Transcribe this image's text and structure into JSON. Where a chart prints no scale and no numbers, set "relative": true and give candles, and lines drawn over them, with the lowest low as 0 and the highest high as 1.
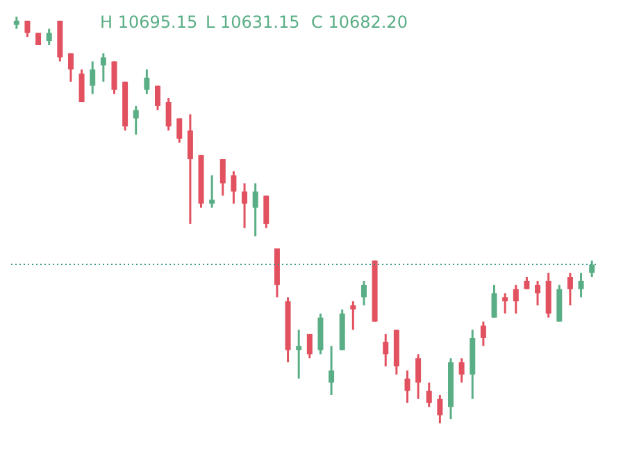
{
  "chart_data": {
    "type": "candlestick",
    "relative": true,
    "annotations": [
      "H 10695.15",
      "L 10631.15",
      "C 10682.20"
    ],
    "categories": [
      null,
      null,
      null,
      null,
      null,
      null,
      null,
      null,
      null,
      null,
      null,
      null,
      null,
      null,
      null,
      null,
      null,
      null,
      null,
      null,
      null,
      null,
      null,
      null,
      null,
      null,
      null,
      null,
      null,
      null,
      null,
      null,
      null,
      null,
      null,
      null,
      null,
      null,
      null,
      null,
      null,
      null,
      null,
      null,
      null,
      null,
      null,
      null,
      null,
      null,
      null,
      null,
      null,
      null
    ],
    "colors": [
      "#5aae85",
      "#e2515f",
      "#e2515f",
      "#5aae85",
      "#e2515f",
      "#e2515f",
      "#e2515f",
      "#5aae85",
      "#5aae85",
      "#e2515f",
      "#e2515f",
      "#5aae85",
      "#5aae85",
      "#e2515f",
      "#e2515f",
      "#e2515f",
      "#e2515f",
      "#e2515f",
      "#5aae85",
      "#e2515f",
      "#e2515f",
      "#e2515f",
      "#5aae85",
      "#e2515f",
      "#e2515f",
      "#e2515f",
      "#5aae85",
      "#e2515f",
      "#5aae85",
      "#5aae85",
      "#5aae85",
      "#e2515f",
      "#5aae85",
      "#e2515f",
      "#e2515f",
      "#e2515f",
      "#e2515f",
      "#e2515f",
      "#e2515f",
      "#e2515f",
      "#5aae85",
      "#e2515f",
      "#5aae85",
      "#e2515f",
      "#5aae85",
      "#e2515f",
      "#e2515f",
      "#e2515f",
      "#e2515f",
      "#e2515f",
      "#5aae85",
      "#e2515f",
      "#5aae85",
      "#5aae85"
    ],
    "ohlc": [
      [
        0.98,
        1.0,
        0.97,
        0.99
      ],
      [
        0.99,
        0.99,
        0.95,
        0.96
      ],
      [
        0.96,
        0.96,
        0.93,
        0.93
      ],
      [
        0.94,
        0.97,
        0.93,
        0.96
      ],
      [
        0.99,
        0.99,
        0.89,
        0.9
      ],
      [
        0.91,
        0.91,
        0.84,
        0.87
      ],
      [
        0.86,
        0.87,
        0.79,
        0.79
      ],
      [
        0.83,
        0.89,
        0.81,
        0.87
      ],
      [
        0.88,
        0.91,
        0.84,
        0.9
      ],
      [
        0.89,
        0.89,
        0.81,
        0.82
      ],
      [
        0.84,
        0.84,
        0.72,
        0.73
      ],
      [
        0.75,
        0.78,
        0.71,
        0.77
      ],
      [
        0.82,
        0.87,
        0.81,
        0.85
      ],
      [
        0.83,
        0.83,
        0.77,
        0.78
      ],
      [
        0.79,
        0.8,
        0.72,
        0.73
      ],
      [
        0.75,
        0.75,
        0.69,
        0.7
      ],
      [
        0.72,
        0.76,
        0.49,
        0.65
      ],
      [
        0.66,
        0.66,
        0.53,
        0.54
      ],
      [
        0.54,
        0.61,
        0.53,
        0.55
      ],
      [
        0.65,
        0.65,
        0.56,
        0.59
      ],
      [
        0.61,
        0.62,
        0.54,
        0.57
      ],
      [
        0.57,
        0.59,
        0.48,
        0.54
      ],
      [
        0.53,
        0.59,
        0.46,
        0.57
      ],
      [
        0.56,
        0.56,
        0.48,
        0.49
      ],
      [
        0.43,
        0.43,
        0.31,
        0.34
      ],
      [
        0.3,
        0.31,
        0.15,
        0.18
      ],
      [
        0.18,
        0.23,
        0.11,
        0.19
      ],
      [
        0.22,
        0.22,
        0.16,
        0.17
      ],
      [
        0.18,
        0.27,
        0.17,
        0.26
      ],
      [
        0.1,
        0.19,
        0.07,
        0.13
      ],
      [
        0.18,
        0.28,
        0.18,
        0.27
      ],
      [
        0.29,
        0.3,
        0.23,
        0.28
      ],
      [
        0.31,
        0.35,
        0.29,
        0.34
      ],
      [
        0.4,
        0.4,
        0.25,
        0.25
      ],
      [
        0.2,
        0.22,
        0.14,
        0.17
      ],
      [
        0.23,
        0.23,
        0.12,
        0.14
      ],
      [
        0.11,
        0.13,
        0.05,
        0.08
      ],
      [
        0.16,
        0.17,
        0.06,
        0.1
      ],
      [
        0.08,
        0.1,
        0.04,
        0.05
      ],
      [
        0.06,
        0.07,
        0.0,
        0.02
      ],
      [
        0.04,
        0.16,
        0.01,
        0.15
      ],
      [
        0.15,
        0.16,
        0.1,
        0.12
      ],
      [
        0.12,
        0.23,
        0.06,
        0.21
      ],
      [
        0.24,
        0.25,
        0.19,
        0.21
      ],
      [
        0.26,
        0.34,
        0.26,
        0.32
      ],
      [
        0.31,
        0.32,
        0.27,
        0.3
      ],
      [
        0.33,
        0.34,
        0.27,
        0.3
      ],
      [
        0.35,
        0.36,
        0.33,
        0.33
      ],
      [
        0.34,
        0.35,
        0.29,
        0.32
      ],
      [
        0.35,
        0.37,
        0.26,
        0.27
      ],
      [
        0.25,
        0.34,
        0.25,
        0.33
      ],
      [
        0.36,
        0.37,
        0.29,
        0.33
      ],
      [
        0.33,
        0.37,
        0.31,
        0.35
      ],
      [
        0.37,
        0.4,
        0.36,
        0.39
      ]
    ],
    "ref_lines": [
      {
        "axis": "y",
        "value": 0.39,
        "color": "#3a9a8a",
        "line_style": "dotted"
      }
    ]
  }
}
